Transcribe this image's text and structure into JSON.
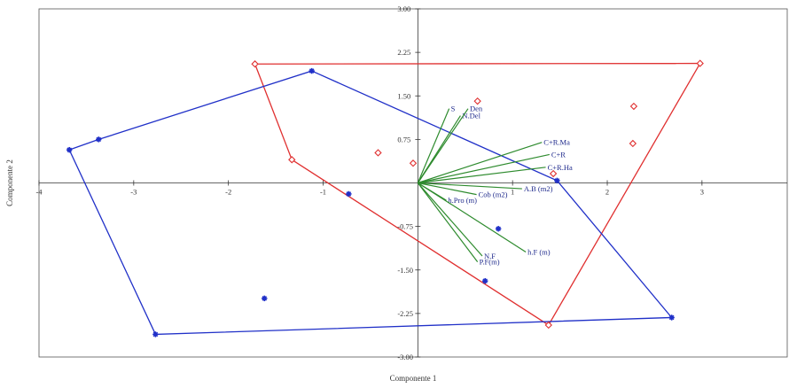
{
  "chart_data": {
    "type": "scatter",
    "xlabel": "Componente 1",
    "ylabel": "Componente 2",
    "xlim": [
      -4,
      3.9
    ],
    "ylim": [
      -3.0,
      3.0
    ],
    "x_ticks": [
      {
        "value": -4,
        "label": "-4"
      },
      {
        "value": -3,
        "label": "-3"
      },
      {
        "value": -2,
        "label": "-2"
      },
      {
        "value": -1,
        "label": "-1"
      },
      {
        "value": 1,
        "label": "1"
      },
      {
        "value": 2,
        "label": "2"
      },
      {
        "value": 3,
        "label": "3"
      }
    ],
    "y_ticks": [
      {
        "value": 3.0,
        "label": "3.00"
      },
      {
        "value": 2.25,
        "label": "2.25"
      },
      {
        "value": 1.5,
        "label": "1.50"
      },
      {
        "value": 0.75,
        "label": "0.75"
      },
      {
        "value": -0.75,
        "label": "-0.75"
      },
      {
        "value": -1.5,
        "label": "-1.50"
      },
      {
        "value": -2.25,
        "label": "-2.25"
      },
      {
        "value": -3.0,
        "label": "-3.00"
      }
    ],
    "grid": false,
    "legend": "none",
    "series": [
      {
        "color": "#e03030",
        "marker": "diamond",
        "points": [
          [
            -1.72,
            2.05
          ],
          [
            -1.33,
            0.4
          ],
          [
            -0.42,
            0.52
          ],
          [
            -0.05,
            0.34
          ],
          [
            0.63,
            1.41
          ],
          [
            1.43,
            0.16
          ],
          [
            2.28,
            1.32
          ],
          [
            2.27,
            0.68
          ],
          [
            1.38,
            -2.45
          ],
          [
            2.98,
            2.06
          ]
        ],
        "hull": [
          [
            -1.72,
            2.05
          ],
          [
            2.98,
            2.06
          ],
          [
            1.38,
            -2.45
          ],
          [
            -1.33,
            0.4
          ]
        ]
      },
      {
        "color": "#2030c8",
        "marker": "asterisk",
        "points": [
          [
            -1.12,
            1.93
          ],
          [
            -3.37,
            0.75
          ],
          [
            -3.68,
            0.57
          ],
          [
            -2.77,
            -2.61
          ],
          [
            -1.62,
            -1.99
          ],
          [
            -0.73,
            -0.19
          ],
          [
            0.85,
            -0.79
          ],
          [
            0.71,
            -1.69
          ],
          [
            1.47,
            0.04
          ],
          [
            2.68,
            -2.32
          ]
        ],
        "hull": [
          [
            -1.12,
            1.93
          ],
          [
            1.47,
            0.04
          ],
          [
            2.68,
            -2.32
          ],
          [
            -2.77,
            -2.61
          ],
          [
            -3.68,
            0.57
          ],
          [
            -3.37,
            0.75
          ]
        ]
      }
    ],
    "vectors": {
      "color": "#2e8b2e",
      "items": [
        {
          "label": "S",
          "x": 0.33,
          "y": 1.28
        },
        {
          "label": "N.Del",
          "x": 0.45,
          "y": 1.16
        },
        {
          "label": "Den",
          "x": 0.53,
          "y": 1.28
        },
        {
          "label": "C+R.Ma",
          "x": 1.31,
          "y": 0.7
        },
        {
          "label": "C+R",
          "x": 1.39,
          "y": 0.49
        },
        {
          "label": "C+R.Ha",
          "x": 1.35,
          "y": 0.27
        },
        {
          "label": "A.B (m2)",
          "x": 1.1,
          "y": -0.1
        },
        {
          "label": "Cob (m2)",
          "x": 0.62,
          "y": -0.2
        },
        {
          "label": "h.Pro (m)",
          "x": 0.3,
          "y": -0.3
        },
        {
          "label": "h.F (m)",
          "x": 1.14,
          "y": -1.19
        },
        {
          "label": "N.F",
          "x": 0.68,
          "y": -1.26
        },
        {
          "label": "P.F(m)",
          "x": 0.63,
          "y": -1.36
        }
      ]
    }
  }
}
